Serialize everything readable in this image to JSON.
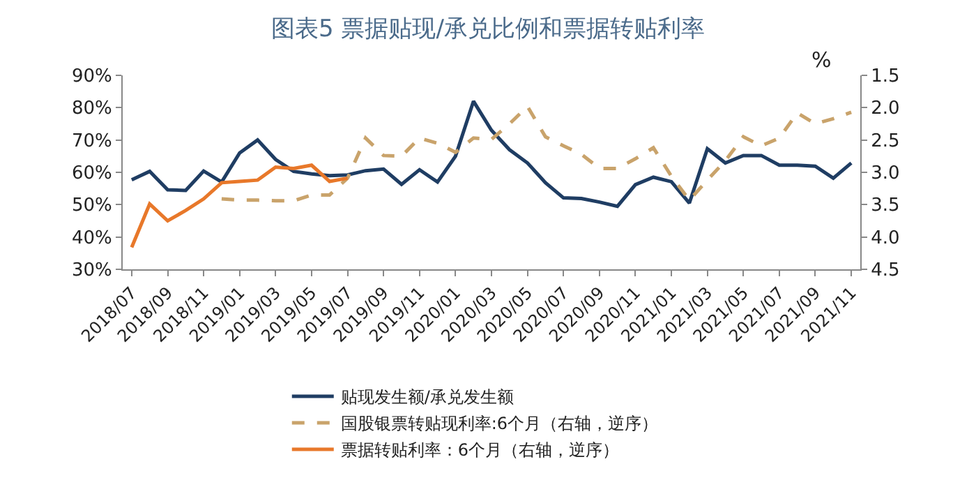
{
  "chart_data": {
    "type": "line",
    "title": "图表5 票据贴现/承兑比例和票据转贴利率",
    "annotations": [
      "%"
    ],
    "categories": [
      "2018/07",
      null,
      "2018/09",
      null,
      "2018/11",
      null,
      "2019/01",
      null,
      "2019/03",
      null,
      "2019/05",
      null,
      "2019/07",
      null,
      "2019/09",
      null,
      "2019/11",
      null,
      "2020/01",
      null,
      "2020/03",
      null,
      "2020/05",
      null,
      "2020/07",
      null,
      "2020/09",
      null,
      "2020/11",
      null,
      "2021/01",
      null,
      "2021/03",
      null,
      "2021/05",
      null,
      "2021/07",
      null,
      "2021/09",
      null,
      "2021/11"
    ],
    "series": [
      {
        "name": "贴现发生额/承兑发生额",
        "color": "#1f3d63",
        "line_style": "solid",
        "values": [
          57.7,
          60.3,
          54.6,
          54.4,
          60.4,
          57,
          66,
          70,
          64,
          60.3,
          59.5,
          59,
          59.2,
          60.5,
          61,
          56.3,
          60.8,
          57,
          65,
          82,
          73,
          67,
          62.9,
          56.8,
          52.1,
          51.9,
          50.8,
          49.5,
          56.2,
          58.5,
          57.1,
          50.5,
          67.3,
          62.9,
          65.2,
          65.2,
          62.2,
          62.2,
          61.9,
          58.2,
          62.9
        ]
      },
      {
        "name": "国股银票转贴现利率:6个月（右轴，逆序）",
        "color": "#c9a36b",
        "line_style": "dashed",
        "axis": "y2",
        "values": [
          null,
          null,
          null,
          null,
          null,
          3.41,
          3.43,
          3.43,
          3.44,
          3.44,
          3.35,
          3.35,
          3.09,
          2.47,
          2.74,
          2.75,
          2.47,
          2.55,
          2.69,
          2.47,
          2.49,
          2.25,
          1.98,
          2.45,
          2.59,
          2.72,
          2.94,
          2.94,
          2.79,
          2.62,
          3.06,
          3.43,
          3.12,
          2.82,
          2.45,
          2.59,
          2.47,
          2.08,
          2.25,
          2.17,
          2.07
        ]
      },
      {
        "name": "票据转贴利率：6个月（右轴，逆序）",
        "color": "#e8782a",
        "line_style": "solid",
        "axis": "y2",
        "values": [
          4.16,
          3.49,
          3.75,
          3.59,
          3.41,
          3.16,
          3.14,
          3.12,
          2.92,
          2.94,
          2.89,
          3.14,
          3.09,
          null,
          null,
          null,
          null,
          null,
          null,
          null,
          null,
          null,
          null,
          null,
          null,
          null,
          null,
          null,
          null,
          null,
          null,
          null,
          null,
          null,
          null,
          null,
          null,
          null,
          null,
          null,
          null
        ]
      }
    ],
    "ylim": [
      30,
      90
    ],
    "yticks": [
      {
        "value": 30,
        "label": "30%"
      },
      {
        "value": 40,
        "label": "40%"
      },
      {
        "value": 50,
        "label": "50%"
      },
      {
        "value": 60,
        "label": "60%"
      },
      {
        "value": 70,
        "label": "70%"
      },
      {
        "value": 80,
        "label": "80%"
      },
      {
        "value": 90,
        "label": "90%"
      }
    ],
    "y2lim": [
      4.5,
      1.5
    ],
    "y2ticks": [
      {
        "value": 1.5,
        "label": "1.5"
      },
      {
        "value": 2,
        "label": "2.0"
      },
      {
        "value": 2.5,
        "label": "2.5"
      },
      {
        "value": 3,
        "label": "3.0"
      },
      {
        "value": 3.5,
        "label": "3.5"
      },
      {
        "value": 4,
        "label": "4.0"
      },
      {
        "value": 4.5,
        "label": "4.5"
      }
    ],
    "grid": false,
    "legend": "bottom",
    "marker": "none"
  }
}
